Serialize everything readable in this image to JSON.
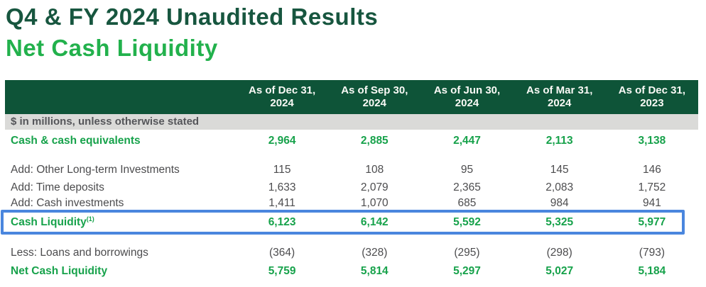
{
  "page": {
    "title": "Q4 & FY 2024 Unaudited Results",
    "subtitle": "Net Cash Liquidity"
  },
  "colors": {
    "title_dark_green": "#17563F",
    "subtitle_green": "#22B14C",
    "header_bg_green": "#0E5438",
    "header_text": "#FFFFFF",
    "unit_band_bg": "#DADAD8",
    "unit_band_text": "#55565A",
    "value_green": "#17A24B",
    "text_gray": "#4C4C4E",
    "highlight_border_blue": "#4A86DE"
  },
  "table": {
    "unit_note": "$ in millions, unless otherwise stated",
    "columns": [
      {
        "line1": "As of Dec 31,",
        "line2": "2024"
      },
      {
        "line1": "As of Sep 30,",
        "line2": "2024"
      },
      {
        "line1": "As of Jun 30,",
        "line2": "2024"
      },
      {
        "line1": "As of Mar 31,",
        "line2": "2024"
      },
      {
        "line1": "As of Dec 31,",
        "line2": "2023"
      }
    ],
    "rows": [
      {
        "label": "Cash & cash equivalents",
        "sup": "",
        "style": "green",
        "highlighted": false,
        "values": [
          "2,964",
          "2,885",
          "2,447",
          "2,113",
          "3,138"
        ]
      },
      {
        "label": "Add: Other Long-term Investments",
        "sup": "",
        "style": "gray",
        "highlighted": false,
        "values": [
          "115",
          "108",
          "95",
          "145",
          "146"
        ]
      },
      {
        "label": "Add: Time deposits",
        "sup": "",
        "style": "gray",
        "highlighted": false,
        "values": [
          "1,633",
          "2,079",
          "2,365",
          "2,083",
          "1,752"
        ]
      },
      {
        "label": "Add: Cash investments",
        "sup": "",
        "style": "gray",
        "highlighted": false,
        "values": [
          "1,411",
          "1,070",
          "685",
          "984",
          "941"
        ]
      },
      {
        "label": "Cash Liquidity",
        "sup": "(1)",
        "style": "green",
        "highlighted": true,
        "values": [
          "6,123",
          "6,142",
          "5,592",
          "5,325",
          "5,977"
        ]
      },
      {
        "label": "Less: Loans and borrowings",
        "sup": "",
        "style": "gray",
        "highlighted": false,
        "values": [
          "(364)",
          "(328)",
          "(295)",
          "(298)",
          "(793)"
        ]
      },
      {
        "label": "Net Cash Liquidity",
        "sup": "",
        "style": "green",
        "highlighted": false,
        "values": [
          "5,759",
          "5,814",
          "5,297",
          "5,027",
          "5,184"
        ]
      }
    ]
  }
}
